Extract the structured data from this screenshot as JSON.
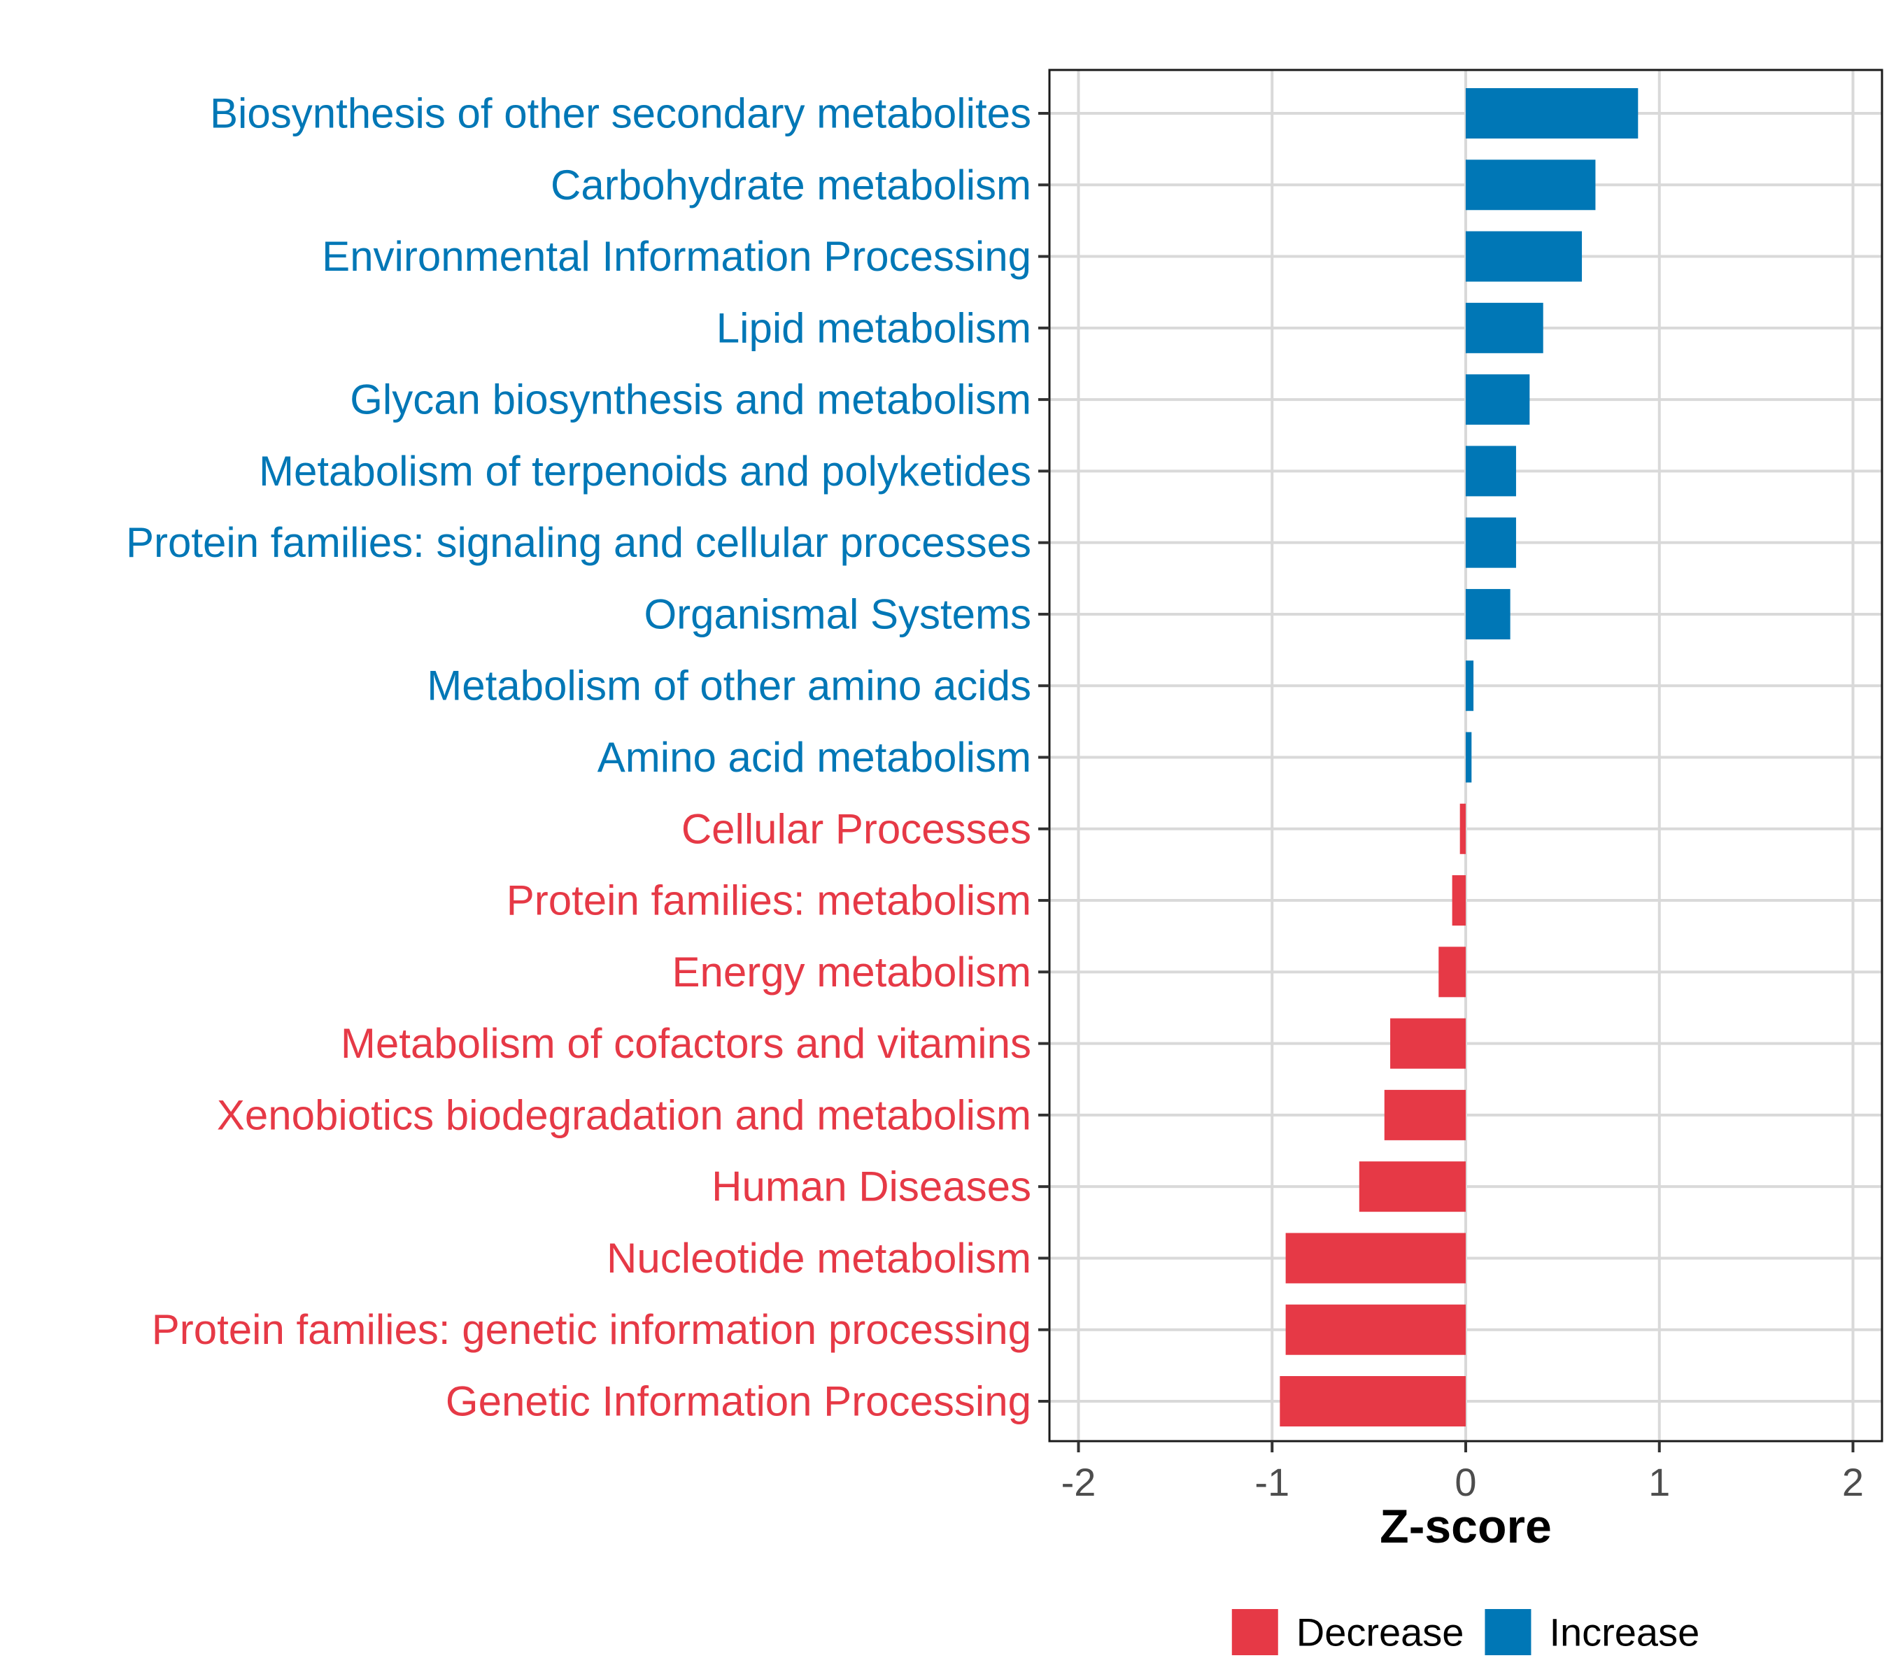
{
  "chart_data": {
    "type": "bar",
    "orientation": "horizontal",
    "xlabel": "Z-score",
    "xlim": [
      -2.15,
      2.15
    ],
    "xticks": [
      -2,
      -1,
      0,
      1,
      2
    ],
    "xtick_labels": [
      "-2",
      "-1",
      "0",
      "1",
      "2"
    ],
    "grid": true,
    "legend_position": "bottom",
    "colors": {
      "Decrease": "#E63946",
      "Increase": "#0077B6"
    },
    "legend": [
      {
        "name": "Decrease",
        "color": "#E63946"
      },
      {
        "name": "Increase",
        "color": "#0077B6"
      }
    ],
    "categories": [
      "Biosynthesis of other secondary metabolites",
      "Carbohydrate metabolism",
      "Environmental Information Processing",
      "Lipid metabolism",
      "Glycan biosynthesis and metabolism",
      "Metabolism of terpenoids and polyketides",
      "Protein families: signaling and cellular processes",
      "Organismal Systems",
      "Metabolism of other amino acids",
      "Amino acid metabolism",
      "Cellular Processes",
      "Protein families: metabolism",
      "Energy metabolism",
      "Metabolism of cofactors and vitamins",
      "Xenobiotics biodegradation and metabolism",
      "Human Diseases",
      "Nucleotide metabolism",
      "Protein families: genetic information processing",
      "Genetic Information Processing"
    ],
    "values": [
      0.89,
      0.67,
      0.6,
      0.4,
      0.33,
      0.26,
      0.26,
      0.23,
      0.04,
      0.03,
      -0.03,
      -0.07,
      -0.14,
      -0.39,
      -0.42,
      -0.55,
      -0.93,
      -0.93,
      -0.96
    ],
    "groups": [
      "Increase",
      "Increase",
      "Increase",
      "Increase",
      "Increase",
      "Increase",
      "Increase",
      "Increase",
      "Increase",
      "Increase",
      "Decrease",
      "Decrease",
      "Decrease",
      "Decrease",
      "Decrease",
      "Decrease",
      "Decrease",
      "Decrease",
      "Decrease"
    ]
  }
}
